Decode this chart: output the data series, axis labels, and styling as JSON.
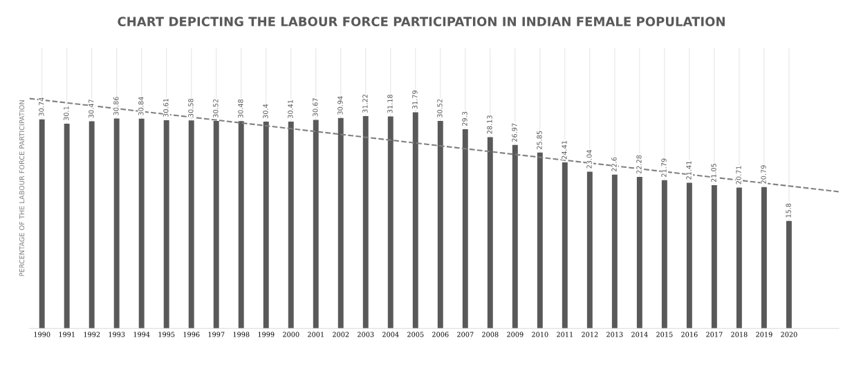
{
  "chart_data": {
    "type": "bar",
    "title": "CHART DEPICTING THE LABOUR FORCE PARTICIPATION IN INDIAN FEMALE POPULATION",
    "ylabel": "PERCENTAGE OF THE LABOUR FORCE PARTICIPATION",
    "x": [
      1990,
      1991,
      1992,
      1993,
      1994,
      1995,
      1996,
      1997,
      1998,
      1999,
      2000,
      2001,
      2002,
      2003,
      2004,
      2005,
      2006,
      2007,
      2008,
      2009,
      2010,
      2011,
      2012,
      2013,
      2014,
      2015,
      2016,
      2017,
      2018,
      2019,
      2020
    ],
    "xlim": [
      1989.5,
      2022
    ],
    "xticks": [
      1990,
      1991,
      1992,
      1993,
      1994,
      1995,
      1996,
      1997,
      1998,
      1999,
      2000,
      2001,
      2002,
      2003,
      2004,
      2005,
      2006,
      2007,
      2008,
      2009,
      2010,
      2011,
      2012,
      2013,
      2014,
      2015,
      2016,
      2017,
      2018,
      2019,
      2020
    ],
    "series": [
      {
        "color": "#595959",
        "values": [
          30.74,
          30.1,
          30.47,
          30.86,
          30.84,
          30.61,
          30.58,
          30.52,
          30.48,
          30.4,
          30.41,
          30.67,
          30.94,
          31.22,
          31.18,
          31.79,
          30.52,
          29.3,
          28.13,
          26.97,
          25.85,
          24.41,
          23.04,
          22.6,
          22.28,
          21.79,
          21.41,
          21.05,
          20.71,
          20.79,
          15.8
        ],
        "value_labels": [
          "30.74",
          "30.1",
          "30.47",
          "30.86",
          "30.84",
          "30.61",
          "30.58",
          "30.52",
          "30.48",
          "30.4",
          "30.41",
          "30.67",
          "30.94",
          "31.22",
          "31.18",
          "31.79",
          "30.52",
          "29.3",
          "28.13",
          "26.97",
          "25.85",
          "24.41",
          "23.04",
          "22.6",
          "22.28",
          "21.79",
          "21.41",
          "21.05",
          "20.71",
          "20.79",
          "15.8"
        ]
      },
      {
        "type": "line",
        "color": "#7f7f7f",
        "line_style": "dashed",
        "x": [
          1989.5,
          2022
        ],
        "values": [
          33.8,
          20.1
        ]
      }
    ],
    "grid": "x",
    "legend": false
  }
}
